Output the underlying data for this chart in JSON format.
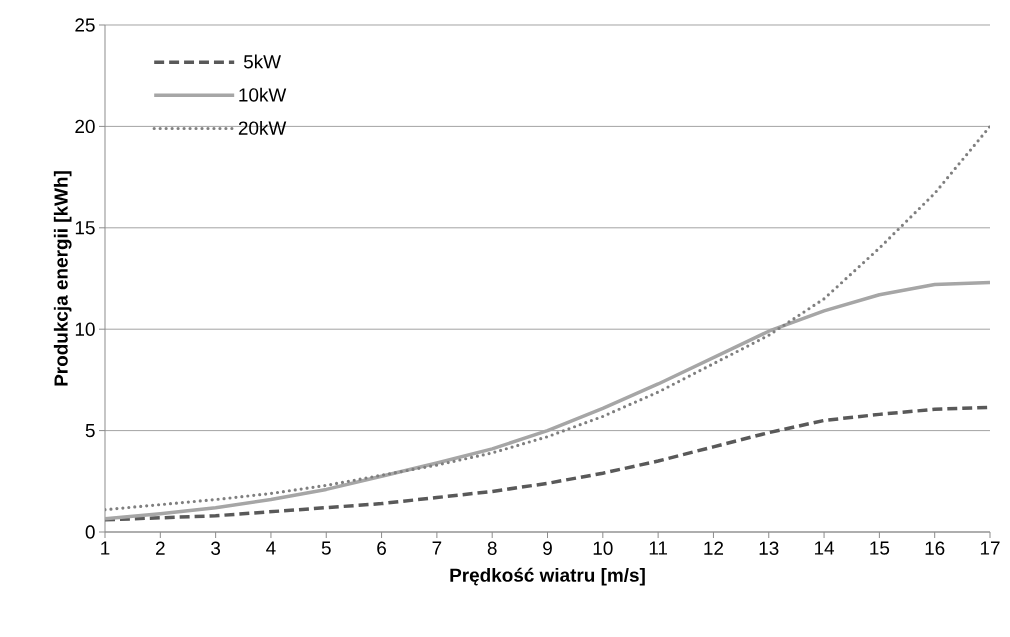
{
  "chart_data": {
    "type": "line",
    "xlabel": "Prędkość wiatru [m/s]",
    "ylabel": "Produkcja energii [kWh]",
    "x": [
      1,
      2,
      3,
      4,
      5,
      6,
      7,
      8,
      9,
      10,
      11,
      12,
      13,
      14,
      15,
      16,
      17
    ],
    "series": [
      {
        "name": "5kW",
        "color": "#595959",
        "line_style": "dashed",
        "values": [
          0.6,
          0.7,
          0.8,
          1.0,
          1.2,
          1.4,
          1.7,
          2.0,
          2.4,
          2.9,
          3.5,
          4.2,
          4.9,
          5.5,
          5.8,
          6.05,
          6.15
        ]
      },
      {
        "name": "10kW",
        "color": "#a6a6a6",
        "line_style": "solid",
        "values": [
          0.65,
          0.9,
          1.2,
          1.6,
          2.1,
          2.75,
          3.4,
          4.1,
          5.0,
          6.1,
          7.3,
          8.6,
          9.9,
          10.9,
          11.7,
          12.2,
          12.3
        ]
      },
      {
        "name": "20kW",
        "color": "#7f7f7f",
        "line_style": "dotted",
        "values": [
          1.1,
          1.35,
          1.6,
          1.9,
          2.3,
          2.8,
          3.3,
          3.9,
          4.7,
          5.7,
          6.9,
          8.3,
          9.7,
          11.5,
          14.0,
          16.7,
          20.0
        ]
      }
    ],
    "xlim": [
      1,
      17
    ],
    "xticks": [
      1,
      2,
      3,
      4,
      5,
      6,
      7,
      8,
      9,
      10,
      11,
      12,
      13,
      14,
      15,
      16,
      17
    ],
    "ylim": [
      0,
      25
    ],
    "yticks": [
      0,
      5,
      10,
      15,
      20,
      25
    ],
    "grid": "y",
    "legend": "top left",
    "marker": "none"
  }
}
